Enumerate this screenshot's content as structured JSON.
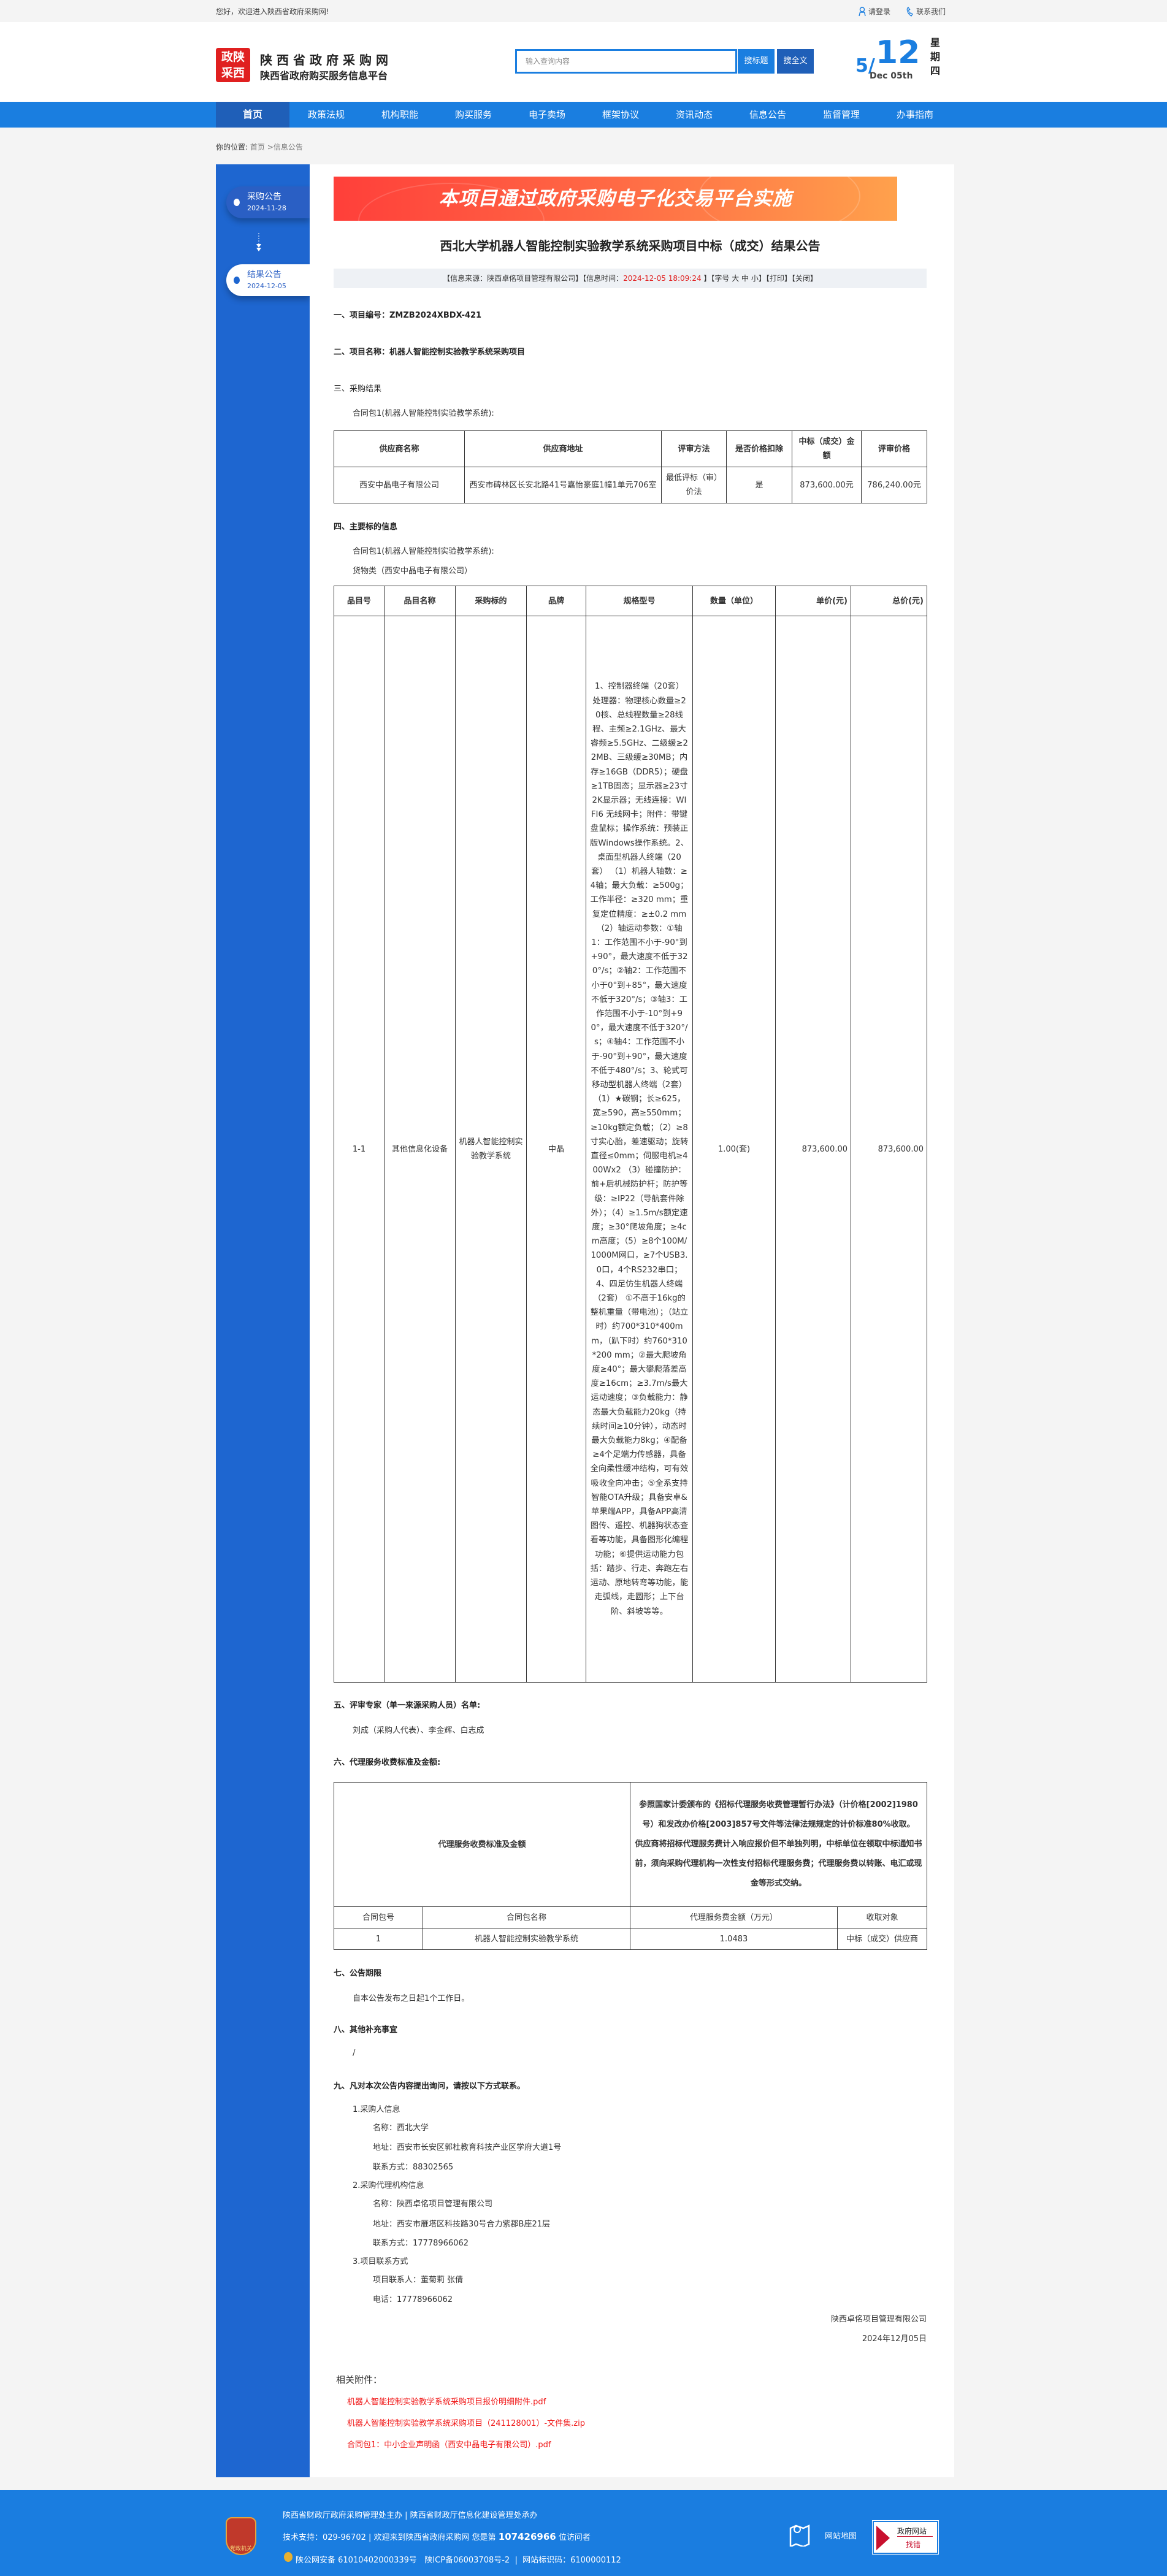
{
  "topbar": {
    "welcome": "您好，欢迎进入陕西省政府采购网!",
    "login": "请登录",
    "contact": "联系我们"
  },
  "header": {
    "logo_text": "政陕采西",
    "site_title": "陕西省政府采购网",
    "site_subtitle": "陕西省政府购买服务信息平台",
    "search_placeholder": "输入查询内容",
    "search_title_btn": "搜标题",
    "search_full_btn": "搜全文",
    "date_month": "5/",
    "date_day": "12",
    "date_en": "Dec 05th",
    "weekday": "星期四"
  },
  "nav": {
    "items": [
      "首页",
      "政策法规",
      "机构职能",
      "购买服务",
      "电子卖场",
      "框架协议",
      "资讯动态",
      "信息公告",
      "监督管理",
      "办事指南"
    ],
    "active": "首页"
  },
  "breadcrumb": {
    "label": "你的位置:",
    "home": "首页",
    "sep": " >",
    "current": "信息公告"
  },
  "sidebar": {
    "items": [
      {
        "title": "采购公告",
        "date": "2024-11-28"
      },
      {
        "title": "结果公告",
        "date": "2024-12-05"
      }
    ]
  },
  "banner": "本项目通过政府采购电子化交易平台实施",
  "doc": {
    "title": "西北大学机器人智能控制实验教学系统采购项目中标（成交）结果公告",
    "info": {
      "source": "【信息来源：陕西卓佲项目管理有限公司】【信息时间：",
      "time": "2024-12-05 18:09:24",
      "after": " 】【字号 大 中 小】【打印】【关闭】"
    },
    "s1": "一、项目编号：ZMZB2024XBDX-421",
    "s2": "二、项目名称：机器人智能控制实验教学系统采购项目",
    "s3": "三、采购结果",
    "s3_pkg": "合同包1(机器人智能控制实验教学系统):",
    "result_table": {
      "headers": [
        "供应商名称",
        "供应商地址",
        "评审方法",
        "是否价格扣除",
        "中标（成交）金额",
        "评审价格"
      ],
      "row": [
        "西安中晶电子有限公司",
        "西安市碑林区长安北路41号嘉怡豪庭1幢1单元706室",
        "最低评标（审）价法",
        "是",
        "873,600.00元",
        "786,240.00元"
      ]
    },
    "s4": "四、主要标的信息",
    "s4_pkg": "合同包1(机器人智能控制实验教学系统):",
    "s4_type": "货物类（西安中晶电子有限公司）",
    "item_table": {
      "headers": [
        "品目号",
        "品目名称",
        "采购标的",
        "品牌",
        "规格型号",
        "数量（单位）",
        "单价(元)",
        "总价(元)"
      ],
      "row": [
        "1-1",
        "其他信息化设备",
        "机器人智能控制实验教学系统",
        "中晶",
        "1、控制器终端（20套） 处理器：物理核心数量≥20核、总线程数量≥28线程、主频≥2.1GHz、最大睿频≥5.5GHz、二级缓≥22MB、三级缓≥30MB；内存≥16GB（DDR5）；硬盘≥1TB固态；显示器≥23寸2K显示器；无线连接：WIFI6 无线网卡；附件：带键盘鼠标；操作系统：预装正版Windows操作系统。2、桌面型机器人终端（20套） （1）机器人轴数：≥4轴；最大负载：≥500g；工作半径：≥320 mm；重复定位精度：≥±0.2 mm（2）轴运动参数：①轴1：工作范围不小于-90°到+90°，最大速度不低于320°/s；②轴2：工作范围不小于0°到+85°，最大速度不低于320°/s；③轴3：工作范围不小于-10°到+90°，最大速度不低于320°/s；④轴4：工作范围不小于-90°到+90°，最大速度不低于480°/s；3、轮式可移动型机器人终端（2套） （1）★碳钢；长≥625，宽≥590，高≥550mm；≥10kg额定负载；（2）≥8寸实心胎，差速驱动；旋转直径≤0mm；伺服电机≥400Wx2 （3）碰撞防护：前+后机械防护杆；防护等级：≥IP22（导航套件除外）；（4）≥1.5m/s额定速度；≥30°爬坡角度；≥4cm高度；（5）≥8个100M/1000M网口，≥7个USB3.0口，4个RS232串口；4、四足仿生机器人终端（2套） ①不高于16kg的整机重量（带电池）；（站立时）约700*310*400mm，（趴下时）约760*310*200 mm；②最大爬坡角度≥40°；最大攀爬落差高度≥16cm；≥3.7m/s最大运动速度；③负载能力：静态最大负载能力20kg（持续时间≥10分钟），动态时最大负载能力8kg；④配备≥4个足端力传感器，具备全向柔性缓冲结构，可有效吸收全向冲击；⑤全系支持智能OTA升级；具备安卓&苹果端APP，具备APP高清图传、遥控、机器狗状态查看等功能，具备图形化编程功能；⑥提供运动能力包括：踏步、行走、奔跑左右运动、原地转弯等功能，能走弧线，走圆形；上下台阶、斜坡等等。",
        "1.00(套)",
        "873,600.00",
        "873,600.00"
      ]
    },
    "s5": "五、评审专家（单一来源采购人员）名单:",
    "s5_text": "刘成（采购人代表）、李金辉、白志成",
    "s6": "六、代理服务收费标准及金额:",
    "fee_table": {
      "label": "代理服务收费标准及金额",
      "text1": "参照国家计委颁布的《招标代理服务收费管理暂行办法》（计价格[2002]1980号）和发改办价格[2003]857号文件等法律法规规定的计价标准80%收取。",
      "text2": "供应商将招标代理服务费计入响应报价但不单独列明，中标单位在领取中标通知书前，须向采购代理机构一次性支付招标代理服务费；代理服务费以转账、电汇或现金等形式交纳。",
      "headers": [
        "合同包号",
        "合同包名称",
        "代理服务费金额（万元）",
        "收取对象"
      ],
      "row": [
        "1",
        "机器人智能控制实验教学系统",
        "1.0483",
        "中标（成交）供应商"
      ]
    },
    "s7": "七、公告期限",
    "s7_text": "自本公告发布之日起1个工作日。",
    "s8": "八、其他补充事宜",
    "s8_text": "/",
    "s9": "九、凡对本次公告内容提出询问，请按以下方式联系。",
    "contacts": [
      {
        "title": "1.采购人信息",
        "lines": [
          "名称：西北大学",
          "地址：西安市长安区郭杜教育科技产业区学府大道1号",
          "联系方式：88302565"
        ]
      },
      {
        "title": "2.采购代理机构信息",
        "lines": [
          "名称：陕西卓佲项目管理有限公司",
          "地址：西安市雁塔区科技路30号合力紫郡B座21层",
          "联系方式：17778966062"
        ]
      },
      {
        "title": "3.项目联系方式",
        "lines": [
          "项目联系人：董菊莉 张倩",
          "电话：17778966062"
        ]
      }
    ],
    "sign_company": "陕西卓佲项目管理有限公司",
    "sign_date": "2024年12月05日"
  },
  "attachments": {
    "label": "相关附件：",
    "files": [
      "机器人智能控制实验教学系统采购项目报价明细附件.pdf",
      "机器人智能控制实验教学系统采购项目（241128001）-文件集.zip",
      "合同包1：中小企业声明函（西安中晶电子有限公司）.pdf"
    ]
  },
  "footer": {
    "emblem_text": "党政机关",
    "line1": "陕西省财政厅政府采购管理处主办 | 陕西省财政厅信息化建设管理处承办",
    "line2_a": "技术支持：029-96702 | 欢迎来到陕西省政府采购网 您是第 ",
    "visitors": "107426966",
    "line2_b": " 位访问者",
    "line3": "陕公网安备 61010402000339号   陕ICP备06003708号-2  |  网站标识码：6100000112",
    "sitemap": "网站地图",
    "gov_badge_1": "政府网站",
    "gov_badge_2": "找错"
  },
  "colors": {
    "primary": "#1a7ee0",
    "nav_active": "#1f5fb8",
    "sidebar": "#1e66d0",
    "link_red": "#f01818",
    "highlight_red": "#e02020"
  }
}
